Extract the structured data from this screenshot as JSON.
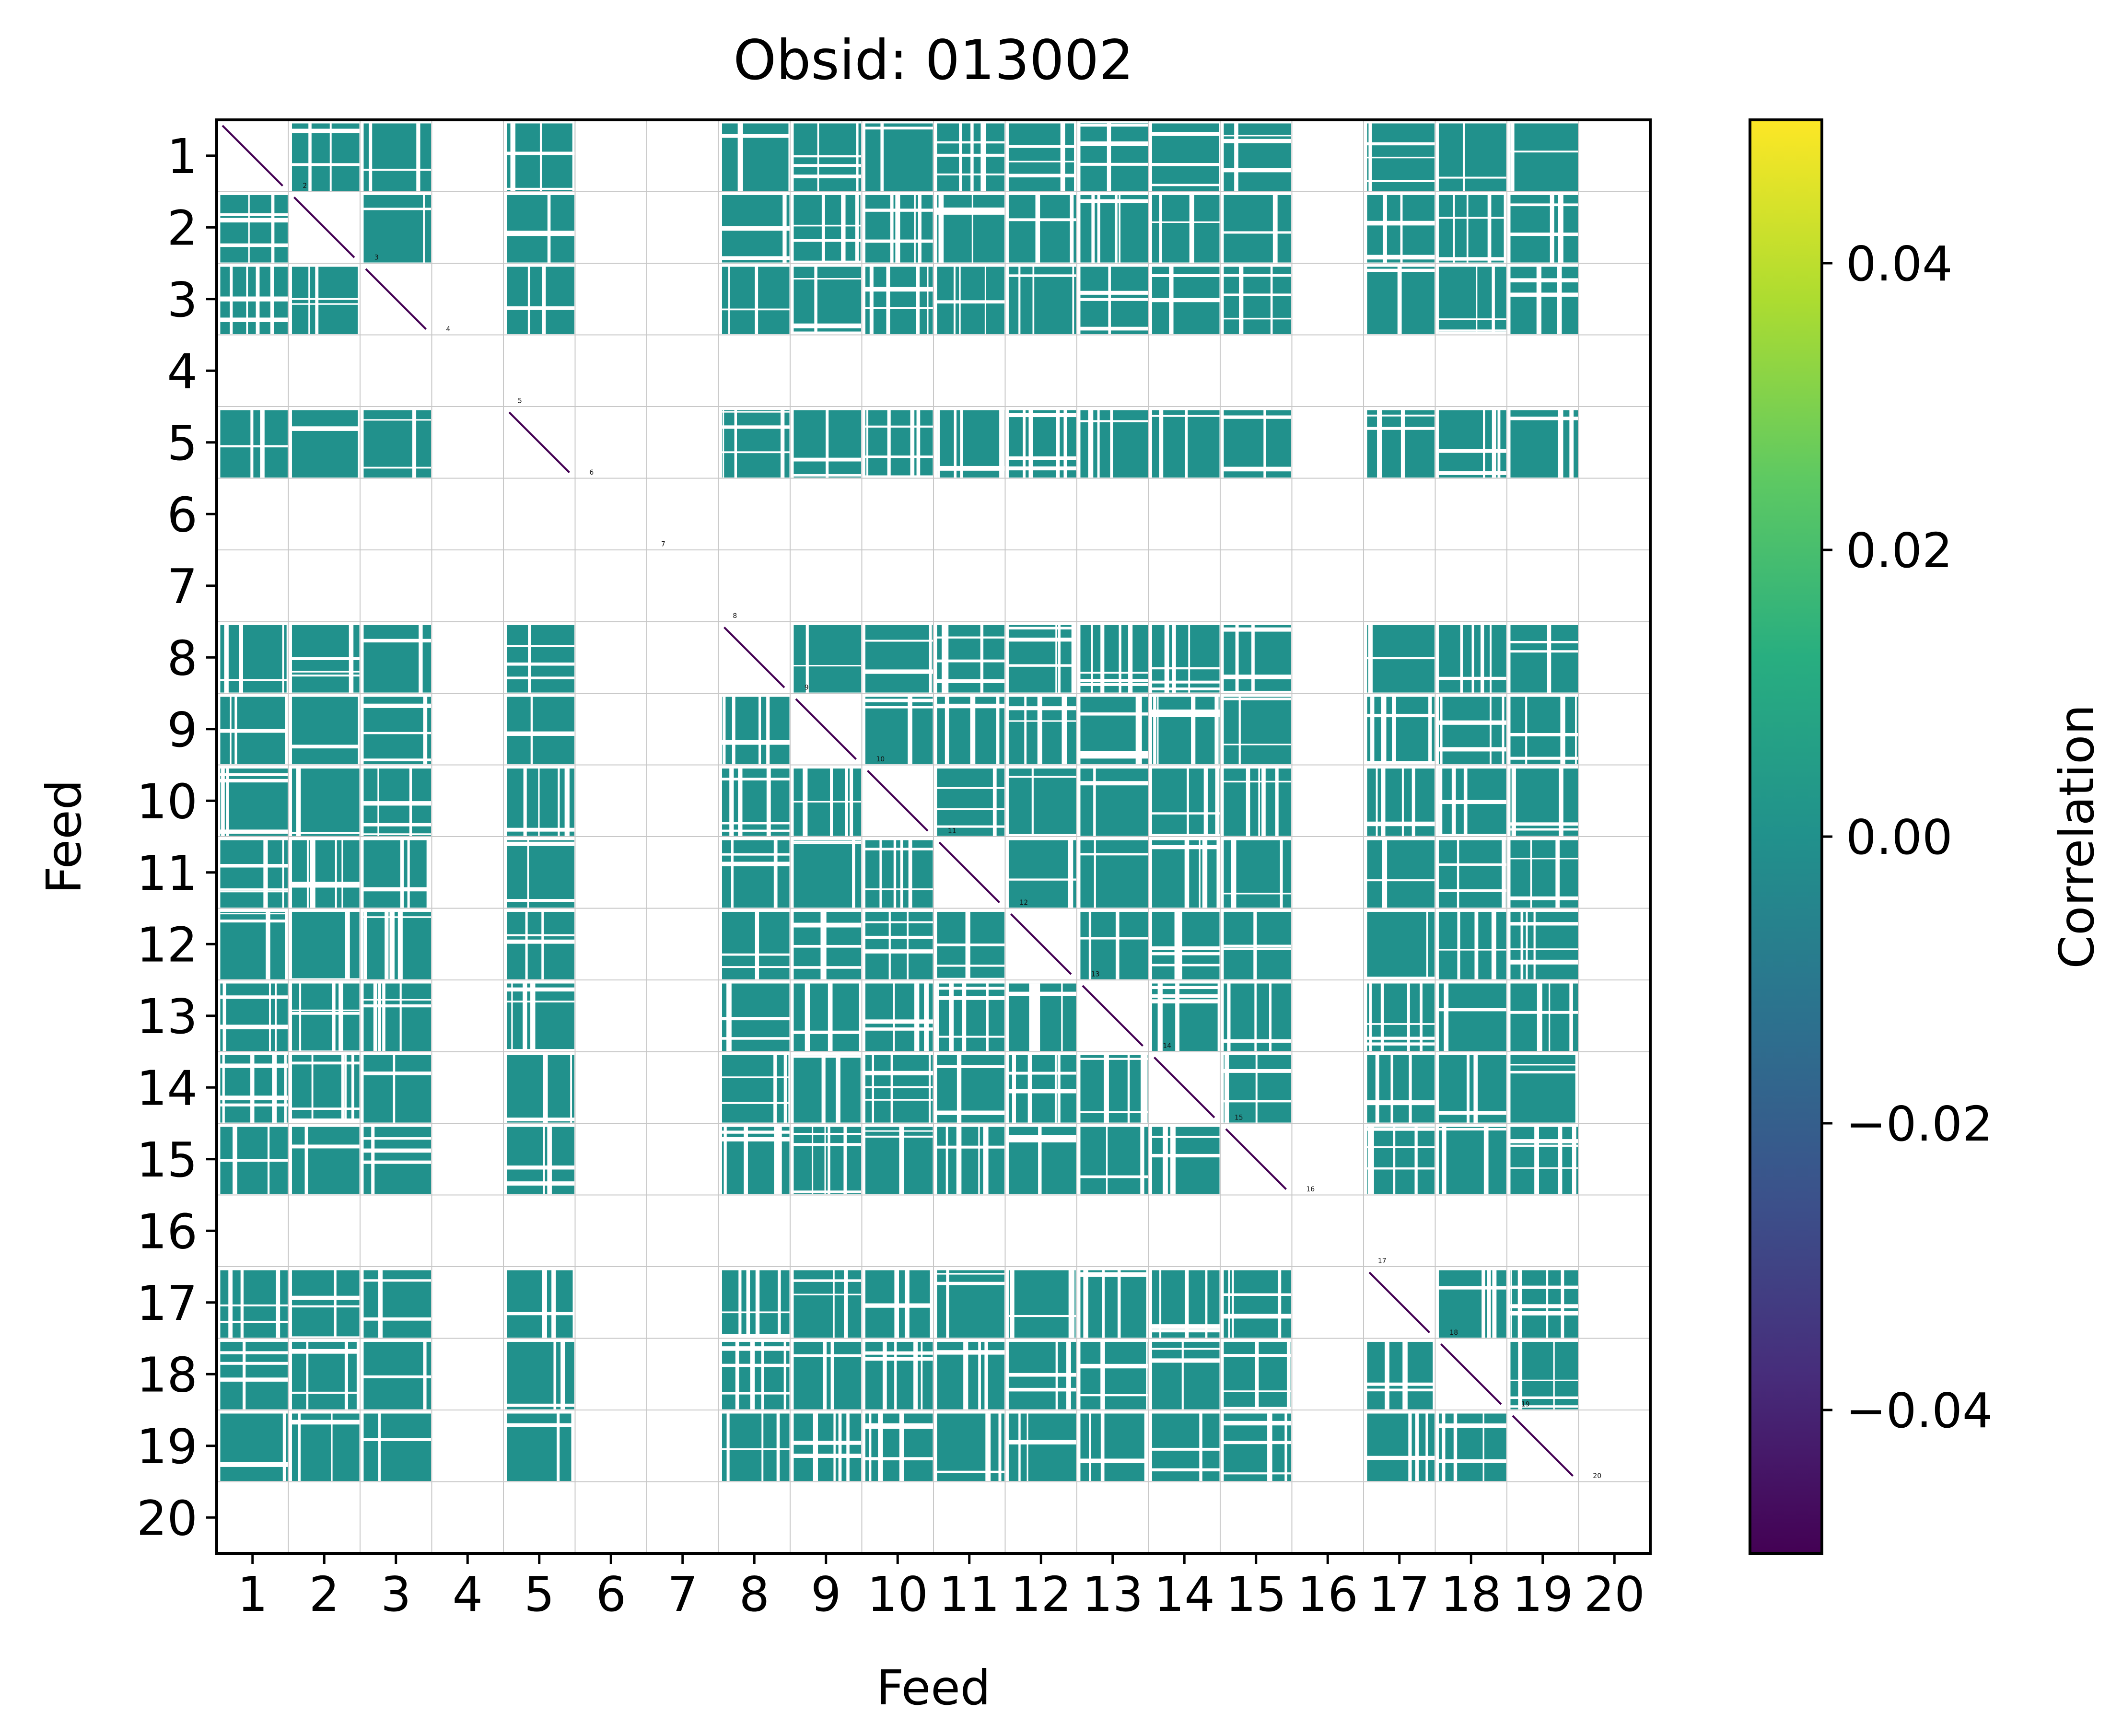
{
  "colors": {
    "cell_fill": "#21918c",
    "background": "#ffffff",
    "gridline": "#c8c8c8",
    "diagonal": "#440154",
    "axes": "#000000"
  },
  "chart_data": {
    "type": "heatmap",
    "title": "Obsid: 013002",
    "xlabel": "Feed",
    "ylabel": "Feed",
    "x_ticks": [
      "1",
      "2",
      "3",
      "4",
      "5",
      "6",
      "7",
      "8",
      "9",
      "10",
      "11",
      "12",
      "13",
      "14",
      "15",
      "16",
      "17",
      "18",
      "19",
      "20"
    ],
    "y_ticks": [
      "1",
      "2",
      "3",
      "4",
      "5",
      "6",
      "7",
      "8",
      "9",
      "10",
      "11",
      "12",
      "13",
      "14",
      "15",
      "16",
      "17",
      "18",
      "19",
      "20"
    ],
    "active_feeds": [
      1,
      2,
      3,
      5,
      8,
      9,
      10,
      11,
      12,
      13,
      14,
      15,
      17,
      18,
      19
    ],
    "masked_feeds": [
      4,
      6,
      7,
      16,
      20
    ],
    "diagonal_labels": [
      "1",
      "2",
      "3",
      "4",
      "5",
      "6",
      "7",
      "8",
      "9",
      "10",
      "11",
      "12",
      "13",
      "14",
      "15",
      "16",
      "17",
      "18",
      "19",
      "20"
    ],
    "off_diagonal_value": 0.0,
    "colorbar": {
      "label": "Correlation",
      "colormap": "viridis",
      "vmin": -0.05,
      "vmax": 0.05,
      "ticks": [
        -0.04,
        -0.02,
        0.0,
        0.02,
        0.04
      ],
      "tick_labels": [
        "−0.04",
        "−0.02",
        "0.00",
        "0.02",
        "0.04"
      ]
    }
  }
}
